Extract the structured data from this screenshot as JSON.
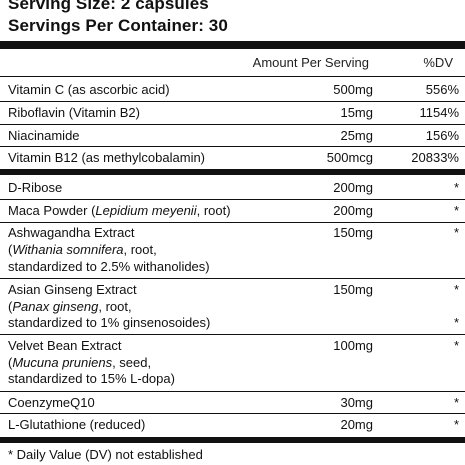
{
  "header": {
    "serving_size": "Serving Size: 2 capsules",
    "servings_per_container": "Servings Per Container: 30"
  },
  "columns": {
    "amount": "Amount Per Serving",
    "dv": "%DV"
  },
  "vitamins": [
    {
      "name": "Vitamin C (as ascorbic acid)",
      "amount": "500mg",
      "dv": "556%"
    },
    {
      "name": "Riboflavin (Vitamin B2)",
      "amount": "15mg",
      "dv": "1154%"
    },
    {
      "name": "Niacinamide",
      "amount": "25mg",
      "dv": "156%"
    },
    {
      "name": "Vitamin B12 (as methylcobalamin)",
      "amount": "500mcg",
      "dv": "20833%"
    }
  ],
  "others": [
    {
      "lines": [
        "D-Ribose"
      ],
      "amount": "200mg",
      "dv": "*"
    },
    {
      "name": "Maca Powder (",
      "latin": "Lepidium meyenii",
      "rest": ", root)",
      "amount": "200mg",
      "dv": "*"
    },
    {
      "lines": [
        "Ashwagandha Extract",
        "Withania somnifera",
        ", root,",
        "standardized to 2.5% withanolides)"
      ],
      "amount": "150mg",
      "dv": "*"
    },
    {
      "lines": [
        "Asian Ginseng Extract",
        "Panax ginseng",
        ", root,",
        "standardized to 1% ginsenosoides)"
      ],
      "amount": "150mg",
      "dv": "*",
      "dv2": "*"
    },
    {
      "lines": [
        "Velvet Bean Extract",
        "Mucuna pruniens",
        ", seed,",
        "standardized to 15% L-dopa)"
      ],
      "amount": "100mg",
      "dv": "*"
    },
    {
      "lines": [
        "CoenzymeQ10"
      ],
      "amount": "30mg",
      "dv": "*"
    },
    {
      "lines": [
        "L-Glutathione (reduced)"
      ],
      "amount": "20mg",
      "dv": "*"
    }
  ],
  "footnote": "* Daily Value (DV) not established",
  "open_paren": "("
}
